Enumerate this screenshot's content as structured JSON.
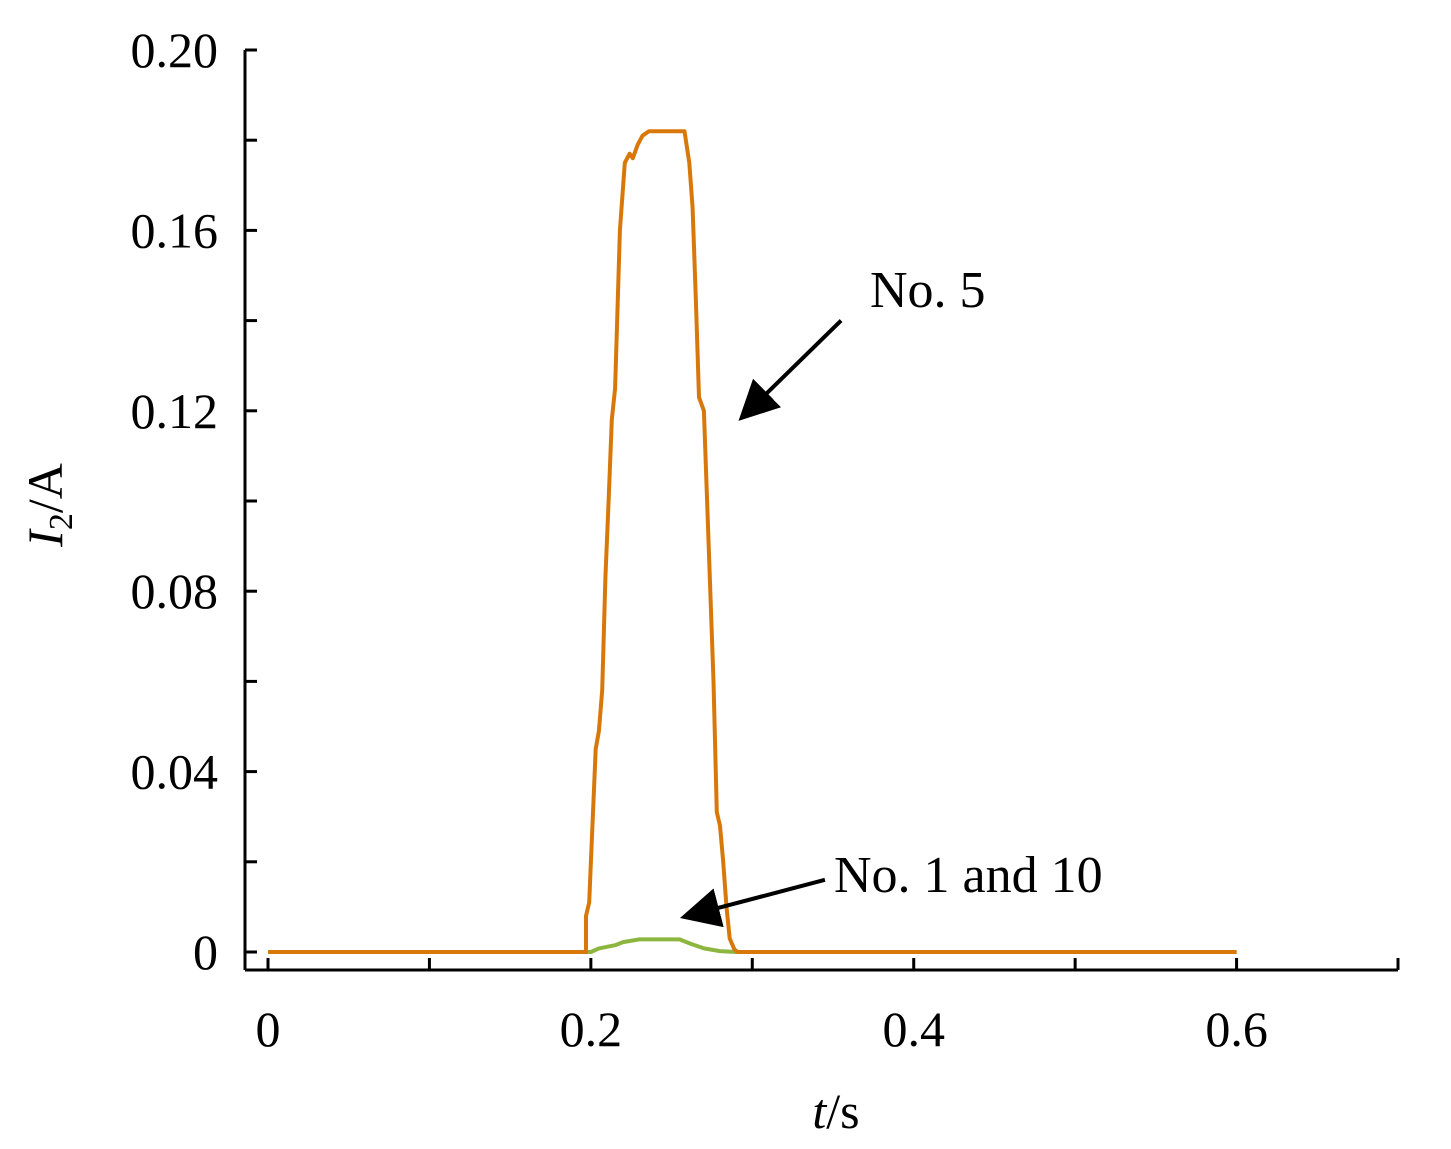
{
  "chart_data": {
    "type": "line",
    "title": "",
    "xlabel_var": "t",
    "xlabel_unit": "/s",
    "ylabel_var": "I",
    "ylabel_sub": "2",
    "ylabel_unit": "/A",
    "xlim": [
      0,
      0.7
    ],
    "ylim": [
      0,
      0.2
    ],
    "x_ticks": [
      0,
      0.1,
      0.2,
      0.3,
      0.4,
      0.5,
      0.6,
      0.7
    ],
    "x_tick_labels": [
      {
        "value": 0,
        "label": "0"
      },
      {
        "value": 0.2,
        "label": "0.2"
      },
      {
        "value": 0.4,
        "label": "0.4"
      },
      {
        "value": 0.6,
        "label": "0.6"
      }
    ],
    "y_ticks": [
      0,
      0.02,
      0.04,
      0.06,
      0.08,
      0.1,
      0.12,
      0.14,
      0.16,
      0.18,
      0.2
    ],
    "y_tick_labels": [
      {
        "value": 0,
        "label": "0"
      },
      {
        "value": 0.04,
        "label": "0.04"
      },
      {
        "value": 0.08,
        "label": "0.08"
      },
      {
        "value": 0.12,
        "label": "0.12"
      },
      {
        "value": 0.16,
        "label": "0.16"
      },
      {
        "value": 0.2,
        "label": "0.20"
      }
    ],
    "grid": false,
    "series": [
      {
        "name": "No. 1 and 10",
        "color": "#8db640",
        "points": [
          [
            0,
            0
          ],
          [
            0.2,
            0
          ],
          [
            0.205,
            0.0008
          ],
          [
            0.215,
            0.0015
          ],
          [
            0.22,
            0.0022
          ],
          [
            0.23,
            0.0028
          ],
          [
            0.255,
            0.0028
          ],
          [
            0.262,
            0.0018
          ],
          [
            0.27,
            0.0008
          ],
          [
            0.28,
            0.0002
          ],
          [
            0.29,
            0
          ],
          [
            0.6,
            0
          ]
        ]
      },
      {
        "name": "No. 5",
        "color": "#d8780a",
        "points": [
          [
            0,
            0
          ],
          [
            0.197,
            0
          ],
          [
            0.197,
            0.008
          ],
          [
            0.199,
            0.011
          ],
          [
            0.2,
            0.02
          ],
          [
            0.203,
            0.045
          ],
          [
            0.205,
            0.049
          ],
          [
            0.207,
            0.058
          ],
          [
            0.209,
            0.083
          ],
          [
            0.211,
            0.1
          ],
          [
            0.213,
            0.118
          ],
          [
            0.215,
            0.125
          ],
          [
            0.218,
            0.16
          ],
          [
            0.221,
            0.175
          ],
          [
            0.224,
            0.177
          ],
          [
            0.226,
            0.176
          ],
          [
            0.229,
            0.179
          ],
          [
            0.232,
            0.181
          ],
          [
            0.236,
            0.182
          ],
          [
            0.258,
            0.182
          ],
          [
            0.261,
            0.175
          ],
          [
            0.263,
            0.165
          ],
          [
            0.265,
            0.145
          ],
          [
            0.267,
            0.123
          ],
          [
            0.27,
            0.12
          ],
          [
            0.272,
            0.1
          ],
          [
            0.274,
            0.08
          ],
          [
            0.276,
            0.06
          ],
          [
            0.278,
            0.031
          ],
          [
            0.28,
            0.028
          ],
          [
            0.282,
            0.02
          ],
          [
            0.284,
            0.01
          ],
          [
            0.286,
            0.003
          ],
          [
            0.289,
            0.0005
          ],
          [
            0.291,
            0
          ],
          [
            0.6,
            0
          ]
        ]
      }
    ],
    "annotations": [
      {
        "text": "No. 5",
        "arrow_from": [
          0.355,
          0.14
        ],
        "arrow_to": [
          0.295,
          0.119
        ]
      },
      {
        "text": "No. 1 and 10",
        "arrow_from": [
          0.345,
          0.016
        ],
        "arrow_to": [
          0.26,
          0.008
        ]
      }
    ]
  }
}
